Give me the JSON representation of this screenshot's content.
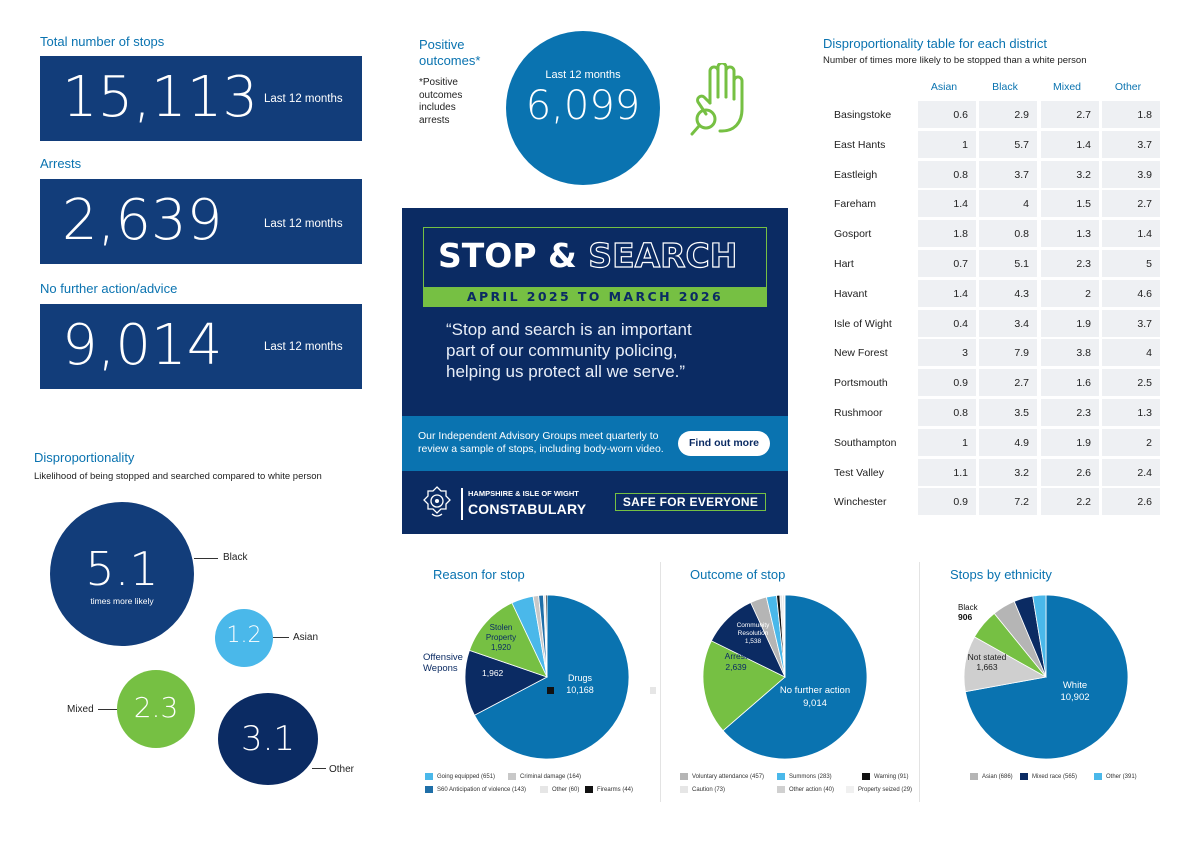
{
  "stats": {
    "total": {
      "title": "Total number of stops",
      "value": "15,113",
      "period": "Last 12 months"
    },
    "arrests": {
      "title": "Arrests",
      "value": "2,639",
      "period": "Last 12 months"
    },
    "nfa": {
      "title": "No further action/advice",
      "value": "9,014",
      "period": "Last 12 months"
    }
  },
  "positive": {
    "title_line1": "Positive",
    "title_line2": "outcomes*",
    "note": [
      "*Positive",
      "outcomes",
      "includes",
      "arrests"
    ],
    "period": "Last 12 months",
    "value": "6,099"
  },
  "disproportionality": {
    "title": "Disproportionality",
    "subtitle": "Likelihood of being stopped and searched compared to white person",
    "bubbles": [
      {
        "value": "5.1",
        "sublabel": "times more likely",
        "label": "Black",
        "color": "#123d7a"
      },
      {
        "value": "1.2",
        "label": "Asian",
        "color": "#4ab8ea"
      },
      {
        "value": "2.3",
        "label": "Mixed",
        "color": "#76c043"
      },
      {
        "value": "3.1",
        "label": "Other",
        "color": "#0b2b63"
      }
    ]
  },
  "poster": {
    "heading_left": "STOP &",
    "heading_right": "SEARCH",
    "period": "APRIL 2025 TO MARCH 2026",
    "quote_lines": [
      "“Stop and search is an important",
      "part of our community policing,",
      "helping us protect all we serve.”"
    ],
    "iag_lines": [
      "Our Independent Advisory Groups meet quarterly to",
      "review a sample of stops, including body-worn video."
    ],
    "cta": "Find out more",
    "org_top": "HAMPSHIRE & ISLE OF WIGHT",
    "org_bottom": "CONSTABULARY",
    "slogan": "SAFE FOR EVERYONE",
    "colors": {
      "navy": "#0b2b63",
      "green": "#76c043",
      "teal": "#0a73b0"
    }
  },
  "district_table": {
    "title": "Disproportionality table for each district",
    "subtitle": "Number of times more likely to be stopped than a white person",
    "columns": [
      "Asian",
      "Black",
      "Mixed",
      "Other"
    ],
    "rows": [
      {
        "district": "Basingstoke",
        "values": [
          "0.6",
          "2.9",
          "2.7",
          "1.8"
        ]
      },
      {
        "district": "East Hants",
        "values": [
          "1",
          "5.7",
          "1.4",
          "3.7"
        ]
      },
      {
        "district": "Eastleigh",
        "values": [
          "0.8",
          "3.7",
          "3.2",
          "3.9"
        ]
      },
      {
        "district": "Fareham",
        "values": [
          "1.4",
          "4",
          "1.5",
          "2.7"
        ]
      },
      {
        "district": "Gosport",
        "values": [
          "1.8",
          "0.8",
          "1.3",
          "1.4"
        ]
      },
      {
        "district": "Hart",
        "values": [
          "0.7",
          "5.1",
          "2.3",
          "5"
        ]
      },
      {
        "district": "Havant",
        "values": [
          "1.4",
          "4.3",
          "2",
          "4.6"
        ]
      },
      {
        "district": "Isle of Wight",
        "values": [
          "0.4",
          "3.4",
          "1.9",
          "3.7"
        ]
      },
      {
        "district": "New Forest",
        "values": [
          "3",
          "7.9",
          "3.8",
          "4"
        ]
      },
      {
        "district": "Portsmouth",
        "values": [
          "0.9",
          "2.7",
          "1.6",
          "2.5"
        ]
      },
      {
        "district": "Rushmoor",
        "values": [
          "0.8",
          "3.5",
          "2.3",
          "1.3"
        ]
      },
      {
        "district": "Southampton",
        "values": [
          "1",
          "4.9",
          "1.9",
          "2"
        ]
      },
      {
        "district": "Test Valley",
        "values": [
          "1.1",
          "3.2",
          "2.6",
          "2.4"
        ]
      },
      {
        "district": "Winchester",
        "values": [
          "0.9",
          "7.2",
          "2.2",
          "2.6"
        ]
      }
    ]
  },
  "chart_data": [
    {
      "type": "pie",
      "title": "Reason for stop",
      "slices": [
        {
          "name": "Drugs",
          "value": 10168,
          "color": "#0a73b0",
          "label": "Drugs",
          "label_value": "10,168"
        },
        {
          "name": "Offensive Wepons",
          "value": 1962,
          "color": "#0b2b63",
          "label": "",
          "label_value": "1,962"
        },
        {
          "name": "Stolen Property",
          "value": 1920,
          "color": "#76c043",
          "label": "Stolen Property",
          "label_value": "1,920"
        },
        {
          "name": "Going equipped",
          "value": 651,
          "color": "#4ab8ea"
        },
        {
          "name": "Criminal damage",
          "value": 164,
          "color": "#c8c8c8"
        },
        {
          "name": "S60 Anticipation of violence",
          "value": 143,
          "color": "#1f6fa8"
        },
        {
          "name": "Other",
          "value": 60,
          "color": "#e6e6e6"
        },
        {
          "name": "Firearms",
          "value": 44,
          "color": "#111111"
        }
      ],
      "callout": "Offensive Wepons",
      "legend": [
        {
          "text": "Going equipped (651)",
          "color": "#4ab8ea"
        },
        {
          "text": "Criminal damage (164)",
          "color": "#c8c8c8"
        },
        {
          "text": "S60 Anticipation of violence (143)",
          "color": "#1f6fa8"
        },
        {
          "text": "Other (60)",
          "color": "#e6e6e6"
        },
        {
          "text": "Firearms (44)",
          "color": "#111111"
        }
      ]
    },
    {
      "type": "pie",
      "title": "Outcome of stop",
      "slices": [
        {
          "name": "No further action",
          "value": 9014,
          "color": "#0a73b0",
          "label": "No further action",
          "label_value": "9,014"
        },
        {
          "name": "Arrest",
          "value": 2639,
          "color": "#76c043",
          "label": "Arrest",
          "label_value": "2,639"
        },
        {
          "name": "Community Resolution",
          "value": 1538,
          "color": "#0b2b63",
          "label": "Community Resolution",
          "label_value": "1,538"
        },
        {
          "name": "Voluntary attendance",
          "value": 457,
          "color": "#b5b5b5"
        },
        {
          "name": "Summons",
          "value": 283,
          "color": "#4ab8ea"
        },
        {
          "name": "Warning",
          "value": 91,
          "color": "#111111"
        },
        {
          "name": "Caution",
          "value": 73,
          "color": "#e6e6e6"
        },
        {
          "name": "Other action",
          "value": 40,
          "color": "#d0d0d0"
        },
        {
          "name": "Property seized",
          "value": 29,
          "color": "#f0f0f0"
        }
      ],
      "legend": [
        {
          "text": "Voluntary attendance (457)",
          "color": "#b5b5b5"
        },
        {
          "text": "Summons (283)",
          "color": "#4ab8ea"
        },
        {
          "text": "Warning (91)",
          "color": "#111111"
        },
        {
          "text": "Caution (73)",
          "color": "#e6e6e6"
        },
        {
          "text": "Other action (40)",
          "color": "#d0d0d0"
        },
        {
          "text": "Property seized (29)",
          "color": "#f0f0f0"
        }
      ]
    },
    {
      "type": "pie",
      "title": "Stops by ethnicity",
      "slices": [
        {
          "name": "White",
          "value": 10902,
          "color": "#0a73b0",
          "label": "White",
          "label_value": "10,902"
        },
        {
          "name": "Not stated",
          "value": 1663,
          "color": "#cfcfcf",
          "label": "Not stated",
          "label_value": "1,663"
        },
        {
          "name": "Black",
          "value": 906,
          "color": "#76c043",
          "label": "Black",
          "label_value": "906"
        },
        {
          "name": "Asian",
          "value": 686,
          "color": "#b5b5b5"
        },
        {
          "name": "Mixed race",
          "value": 565,
          "color": "#0b2b63"
        },
        {
          "name": "Other",
          "value": 391,
          "color": "#4ab8ea"
        }
      ],
      "legend": [
        {
          "text": "Asian (686)",
          "color": "#b5b5b5"
        },
        {
          "text": "Mixed race (565)",
          "color": "#0b2b63"
        },
        {
          "text": "Other (391)",
          "color": "#4ab8ea"
        }
      ]
    }
  ]
}
